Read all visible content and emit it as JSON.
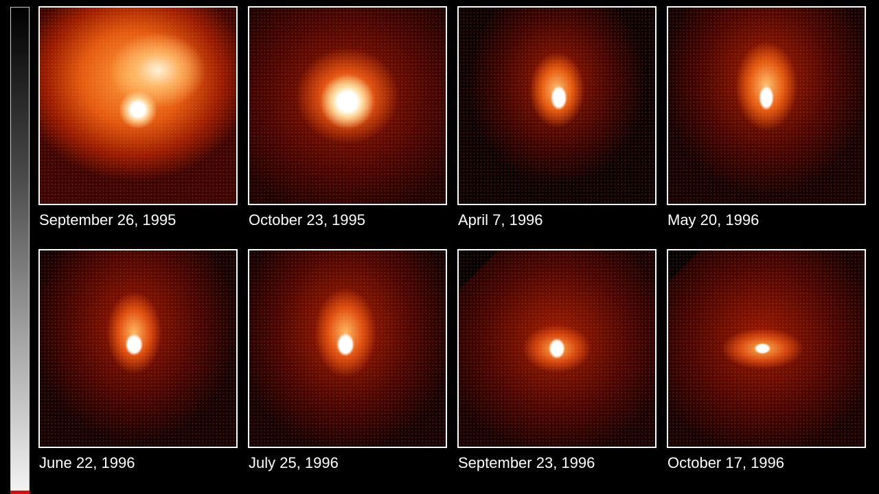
{
  "panels": [
    {
      "label": "September 26, 1995"
    },
    {
      "label": "October 23, 1995"
    },
    {
      "label": "April 7, 1996"
    },
    {
      "label": "May 20, 1996"
    },
    {
      "label": "June 22, 1996"
    },
    {
      "label": "July 25, 1996"
    },
    {
      "label": "September 23, 1996"
    },
    {
      "label": "October 17, 1996"
    }
  ],
  "colors": {
    "background": "#000000",
    "frame": "#ffffff",
    "glow_core": "#ffffff",
    "glow_inner": "#ffb060",
    "glow_outer": "#c83000",
    "scale_tip": "#d01010"
  }
}
